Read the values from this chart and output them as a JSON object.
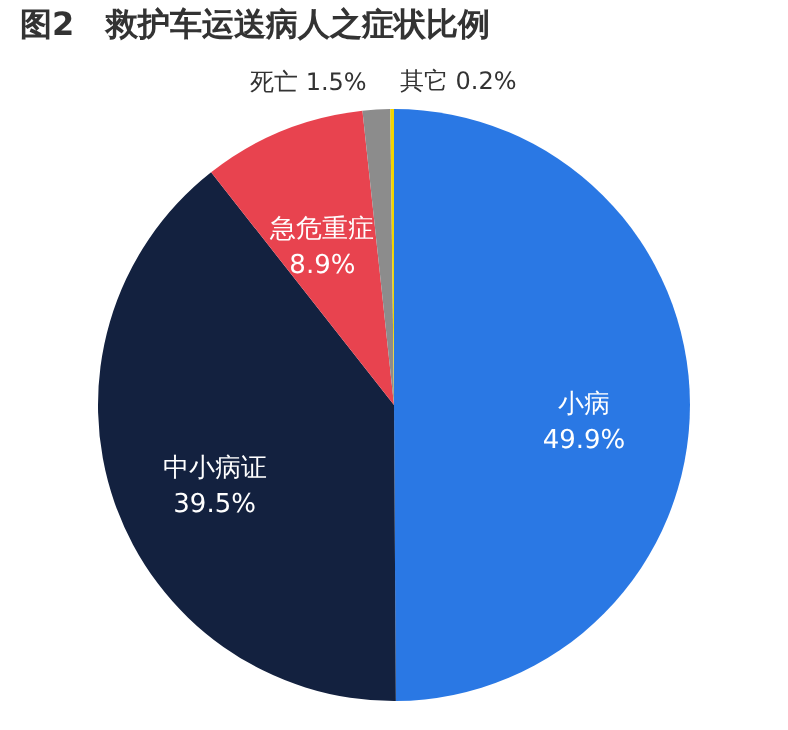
{
  "chart_data": {
    "type": "pie",
    "title": "图2　救护车运送病人之症状比例",
    "categories": [
      "小病",
      "中小病证",
      "急危重症",
      "死亡",
      "其它"
    ],
    "values": [
      49.9,
      39.5,
      8.9,
      1.5,
      0.2
    ],
    "value_labels": [
      "49.9%",
      "39.5%",
      "8.9%",
      "1.5%",
      "0.2%"
    ],
    "colors": [
      "#2a78e4",
      "#13213f",
      "#e8434f",
      "#8c8c8c",
      "#f2d400"
    ],
    "legend": false
  }
}
